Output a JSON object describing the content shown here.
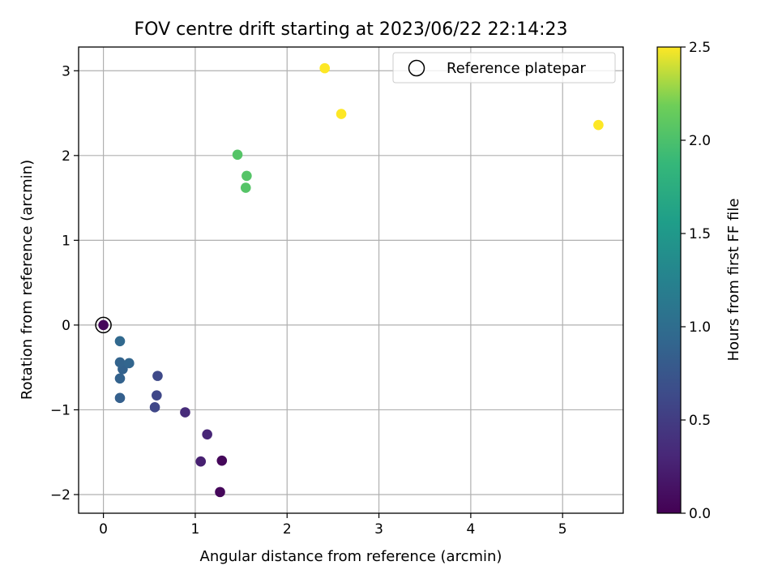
{
  "chart_data": {
    "type": "scatter",
    "title": "FOV centre drift starting at 2023/06/22 22:14:23",
    "xlabel": "Angular distance from reference (arcmin)",
    "ylabel": "Rotation from reference (arcmin)",
    "xlim": [
      -0.27,
      5.66
    ],
    "ylim": [
      -2.22,
      3.28
    ],
    "xticks": [
      "0",
      "1",
      "2",
      "3",
      "4",
      "5"
    ],
    "yticks": [
      "−2",
      "−1",
      "0",
      "1",
      "2",
      "3"
    ],
    "grid": true,
    "legend": {
      "placement": "top-right",
      "entries": [
        "Reference platepar"
      ]
    },
    "reference": {
      "x": 0,
      "y": 0
    },
    "colorbar": {
      "label": "Hours from first FF file",
      "range": [
        0.0,
        2.5
      ],
      "ticks": [
        "0.0",
        "0.5",
        "1.0",
        "1.5",
        "2.0",
        "2.5"
      ],
      "colormap": "viridis"
    },
    "points": [
      {
        "x": 0.0,
        "y": 0.0,
        "c": 0.05
      },
      {
        "x": 1.29,
        "y": -1.6,
        "c": 0.05
      },
      {
        "x": 1.27,
        "y": -1.97,
        "c": 0.05
      },
      {
        "x": 1.06,
        "y": -1.61,
        "c": 0.25
      },
      {
        "x": 1.13,
        "y": -1.29,
        "c": 0.3
      },
      {
        "x": 0.89,
        "y": -1.03,
        "c": 0.35
      },
      {
        "x": 0.56,
        "y": -0.97,
        "c": 0.6
      },
      {
        "x": 0.58,
        "y": -0.83,
        "c": 0.6
      },
      {
        "x": 0.59,
        "y": -0.6,
        "c": 0.62
      },
      {
        "x": 0.18,
        "y": -0.86,
        "c": 0.85
      },
      {
        "x": 0.18,
        "y": -0.63,
        "c": 0.88
      },
      {
        "x": 0.21,
        "y": -0.52,
        "c": 0.88
      },
      {
        "x": 0.18,
        "y": -0.44,
        "c": 0.9
      },
      {
        "x": 0.28,
        "y": -0.45,
        "c": 0.92
      },
      {
        "x": 0.18,
        "y": -0.19,
        "c": 0.95
      },
      {
        "x": 1.46,
        "y": 2.01,
        "c": 2.05
      },
      {
        "x": 1.56,
        "y": 1.76,
        "c": 2.05
      },
      {
        "x": 1.55,
        "y": 1.62,
        "c": 2.05
      },
      {
        "x": 2.41,
        "y": 3.03,
        "c": 2.5
      },
      {
        "x": 2.59,
        "y": 2.49,
        "c": 2.5
      },
      {
        "x": 5.39,
        "y": 2.36,
        "c": 2.5
      }
    ]
  }
}
